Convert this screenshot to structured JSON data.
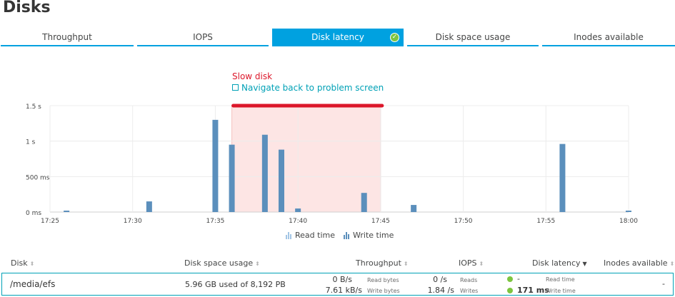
{
  "page_title": "Disks",
  "tabs": [
    {
      "label": "Throughput",
      "active": false
    },
    {
      "label": "IOPS",
      "active": false
    },
    {
      "label": "Disk latency",
      "active": true
    },
    {
      "label": "Disk space usage",
      "active": false
    },
    {
      "label": "Inodes available",
      "active": false
    }
  ],
  "problem": {
    "label": "Slow disk",
    "link": "Navigate back to problem screen",
    "start": "17:36",
    "end": "17:45"
  },
  "chart_data": {
    "type": "bar",
    "title": "",
    "xlabel": "",
    "ylabel": "",
    "x_ticks": [
      "17:25",
      "17:30",
      "17:35",
      "17:40",
      "17:45",
      "17:50",
      "17:55",
      "18:00"
    ],
    "y_ticks": [
      "0 ms",
      "500 ms",
      "1 s",
      "1.5 s"
    ],
    "ylim": [
      0,
      1500
    ],
    "y_unit": "ms",
    "grid": true,
    "legend": "bottom",
    "colors": {
      "read": "#a3c6e5",
      "write": "#5b8fbc",
      "problem_fill": "#fde5e4",
      "problem_bar": "#dc172a"
    },
    "series": [
      {
        "name": "Read time",
        "values": []
      },
      {
        "name": "Write time",
        "points": [
          {
            "x": "17:26",
            "y": 20
          },
          {
            "x": "17:31",
            "y": 150
          },
          {
            "x": "17:35",
            "y": 1300
          },
          {
            "x": "17:36",
            "y": 950
          },
          {
            "x": "17:38",
            "y": 1090
          },
          {
            "x": "17:39",
            "y": 880
          },
          {
            "x": "17:40",
            "y": 50
          },
          {
            "x": "17:44",
            "y": 270
          },
          {
            "x": "17:47",
            "y": 100
          },
          {
            "x": "17:56",
            "y": 960
          },
          {
            "x": "18:00",
            "y": 20
          }
        ]
      }
    ]
  },
  "legend_items": [
    "Read time",
    "Write time"
  ],
  "table": {
    "headers": {
      "disk": "Disk",
      "space": "Disk space usage",
      "throughput": "Throughput",
      "iops": "IOPS",
      "latency": "Disk latency",
      "inodes": "Inodes available"
    },
    "rows": [
      {
        "disk": "/media/efs",
        "space": "5.96 GB used of 8,192 PB",
        "read_bytes": "0 B/s",
        "read_bytes_label": "Read bytes",
        "write_bytes": "7.61 kB/s",
        "write_bytes_label": "Write bytes",
        "reads": "0 /s",
        "reads_label": "Reads",
        "writes": "1.84 /s",
        "writes_label": "Writes",
        "read_time": "-",
        "read_time_label": "Read time",
        "write_time": "171 ms",
        "write_time_label": "Write time",
        "inodes": "-"
      }
    ]
  }
}
